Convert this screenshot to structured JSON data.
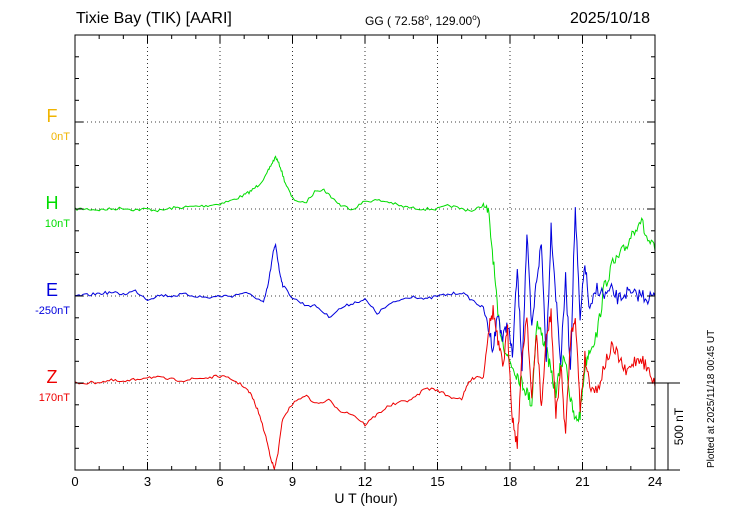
{
  "header": {
    "station": "Tixie Bay (TIK)  [AARI]",
    "coords_prefix": "GG ( 72.58",
    "coords_mid": ", 129.00",
    "coords_suffix": ")",
    "degree": "o",
    "date": "2025/10/18"
  },
  "footer": {
    "plotted": "Plotted at 2025/11/18 00:45 UT"
  },
  "chart_data": {
    "type": "line",
    "xlabel": "U T (hour)",
    "xlim": [
      0,
      24
    ],
    "xticks": [
      0,
      3,
      6,
      9,
      12,
      15,
      18,
      21,
      24
    ],
    "scale_bar": {
      "label": "500 nT",
      "value_nT": 500
    },
    "series": [
      {
        "name": "F",
        "baseline_label": "0nT",
        "color": "#f0b400",
        "x": [],
        "y": []
      },
      {
        "name": "H",
        "baseline_label": "10nT",
        "color": "#00dd00",
        "x": [
          0,
          0.5,
          1,
          1.5,
          2,
          2.5,
          3,
          3.5,
          4,
          4.5,
          5,
          5.5,
          6,
          6.5,
          7,
          7.3,
          7.6,
          7.9,
          8.1,
          8.3,
          8.5,
          8.7,
          9,
          9.5,
          10,
          10.3,
          10.6,
          11,
          11.5,
          12,
          12.5,
          13,
          13.5,
          14,
          14.5,
          15,
          15.5,
          16,
          16.5,
          16.9,
          17.1,
          17.3,
          17.5,
          17.7,
          17.9,
          18.1,
          18.3,
          18.5,
          18.7,
          18.9,
          19.1,
          19.3,
          19.5,
          19.7,
          19.9,
          20.1,
          20.3,
          20.5,
          20.7,
          20.9,
          21.1,
          21.3,
          21.6,
          21.9,
          22.2,
          22.5,
          22.8,
          23.1,
          23.4,
          23.7,
          24
        ],
        "y": [
          0,
          0,
          -5,
          0,
          5,
          -5,
          0,
          -10,
          5,
          10,
          15,
          20,
          30,
          50,
          80,
          105,
          140,
          190,
          250,
          300,
          240,
          150,
          60,
          30,
          110,
          110,
          70,
          20,
          0,
          45,
          50,
          40,
          15,
          5,
          0,
          0,
          20,
          0,
          -10,
          25,
          -20,
          -280,
          -620,
          -760,
          -850,
          -900,
          -950,
          -1000,
          -1050,
          -1120,
          -650,
          -720,
          -800,
          -950,
          -1050,
          -900,
          -850,
          -1100,
          -1220,
          -1180,
          -900,
          -800,
          -720,
          -450,
          -330,
          -280,
          -220,
          -120,
          -60,
          -180,
          -240
        ]
      },
      {
        "name": "E",
        "baseline_label": "-250nT",
        "color": "#0000dd",
        "x": [
          0,
          0.5,
          1,
          1.5,
          2,
          2.5,
          3,
          3.5,
          4,
          4.5,
          5,
          5.5,
          6,
          6.5,
          7,
          7.5,
          7.8,
          8.0,
          8.2,
          8.3,
          8.45,
          8.6,
          9,
          9.5,
          10,
          10.5,
          11,
          11.5,
          12,
          12.5,
          13,
          13.5,
          14,
          14.5,
          15,
          15.5,
          16,
          16.5,
          16.9,
          17.1,
          17.3,
          17.5,
          17.7,
          17.9,
          18.1,
          18.3,
          18.5,
          18.7,
          18.9,
          19.1,
          19.3,
          19.5,
          19.7,
          19.9,
          20.1,
          20.3,
          20.5,
          20.7,
          20.9,
          21.1,
          21.3,
          21.6,
          21.9,
          22.2,
          22.5,
          22.8,
          23.1,
          23.4,
          23.7,
          24
        ],
        "y": [
          0,
          5,
          15,
          20,
          10,
          30,
          -20,
          5,
          0,
          10,
          0,
          -10,
          0,
          0,
          20,
          -10,
          -40,
          70,
          250,
          300,
          150,
          60,
          -10,
          -50,
          -60,
          -120,
          -70,
          -40,
          -20,
          -100,
          -50,
          -20,
          0,
          -20,
          0,
          10,
          20,
          -30,
          -70,
          -180,
          -300,
          -100,
          -250,
          -150,
          -350,
          150,
          -400,
          350,
          -200,
          100,
          300,
          -350,
          400,
          0,
          -380,
          100,
          -420,
          500,
          -150,
          200,
          -100,
          50,
          0,
          30,
          -20,
          20,
          0,
          10,
          -10,
          0
        ]
      },
      {
        "name": "Z",
        "baseline_label": "170nT",
        "color": "#ee0000",
        "x": [
          0,
          0.5,
          1,
          1.5,
          2,
          2.5,
          3,
          3.5,
          4,
          4.5,
          5,
          5.5,
          6,
          6.5,
          7,
          7.3,
          7.6,
          7.9,
          8.1,
          8.25,
          8.4,
          8.6,
          9,
          9.5,
          10,
          10.5,
          11,
          11.5,
          12,
          12.5,
          13,
          13.5,
          14,
          14.5,
          15,
          15.5,
          16,
          16.3,
          16.6,
          16.9,
          17.1,
          17.3,
          17.5,
          17.7,
          17.9,
          18.1,
          18.3,
          18.5,
          18.7,
          18.9,
          19.1,
          19.3,
          19.5,
          19.7,
          19.9,
          20.1,
          20.3,
          20.5,
          20.7,
          20.9,
          21.1,
          21.3,
          21.6,
          21.9,
          22.2,
          22.5,
          22.8,
          23.1,
          23.4,
          23.7,
          24
        ],
        "y": [
          0,
          0,
          5,
          15,
          5,
          20,
          35,
          30,
          20,
          15,
          25,
          30,
          40,
          20,
          -20,
          -70,
          -170,
          -310,
          -430,
          -500,
          -400,
          -200,
          -120,
          -70,
          -120,
          -100,
          -160,
          -180,
          -240,
          -180,
          -130,
          -110,
          -90,
          -30,
          -40,
          -80,
          -90,
          5,
          40,
          30,
          300,
          420,
          230,
          100,
          300,
          -200,
          -350,
          150,
          400,
          -100,
          300,
          -150,
          250,
          400,
          -200,
          100,
          -300,
          250,
          400,
          -150,
          150,
          0,
          -50,
          100,
          200,
          150,
          50,
          120,
          150,
          80,
          -20
        ]
      }
    ]
  }
}
